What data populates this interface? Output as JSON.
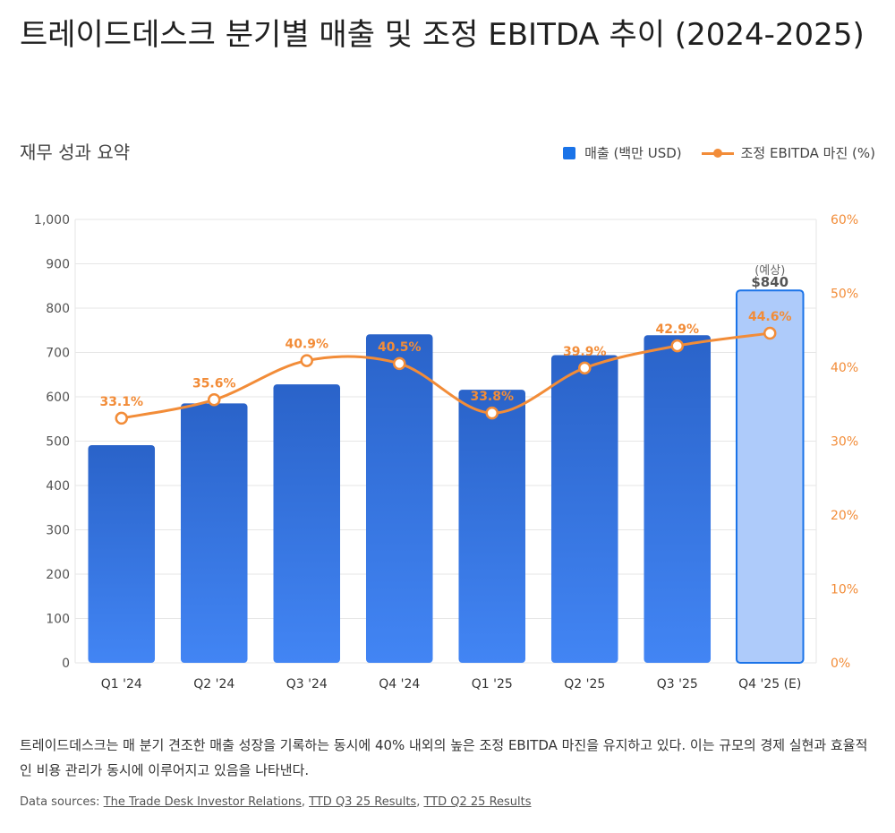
{
  "header": {
    "title": "트레이드데스크 분기별 매출 및 조정 EBITDA 추이 (2024-2025)",
    "subtitle": "재무 성과 요약"
  },
  "legend": {
    "revenue_label": "매출 (백만 USD)",
    "margin_label": "조정 EBITDA 마진 (%)"
  },
  "colors": {
    "bar_top": "#2a63c9",
    "bar_bottom": "#4285f4",
    "estimate_fill": "#aecbfa",
    "estimate_stroke": "#1a73e8",
    "line": "#f28c38",
    "grid": "#e6e6e6"
  },
  "chart_data": {
    "type": "bar",
    "categories": [
      "Q1 '24",
      "Q2 '24",
      "Q3 '24",
      "Q4 '24",
      "Q1 '25",
      "Q2 '25",
      "Q3 '25",
      "Q4 '25 (E)"
    ],
    "series": [
      {
        "name": "매출 (백만 USD)",
        "type": "bar",
        "axis": "left",
        "values": [
          491,
          585,
          628,
          741,
          616,
          694,
          739,
          840
        ]
      },
      {
        "name": "조정 EBITDA 마진 (%)",
        "type": "line",
        "axis": "right",
        "values": [
          33.1,
          35.6,
          40.9,
          40.5,
          33.8,
          39.9,
          42.9,
          44.6
        ],
        "labels": [
          "33.1%",
          "35.6%",
          "40.9%",
          "40.5%",
          "33.8%",
          "39.9%",
          "42.9%",
          "44.6%"
        ]
      }
    ],
    "left_axis": {
      "min": 0,
      "max": 1000,
      "step": 100,
      "tick_labels": [
        "0",
        "100",
        "200",
        "300",
        "400",
        "500",
        "600",
        "700",
        "800",
        "900",
        "1,000"
      ]
    },
    "right_axis": {
      "min": 0,
      "max": 60,
      "step": 10,
      "tick_labels": [
        "0%",
        "10%",
        "20%",
        "30%",
        "40%",
        "50%",
        "60%"
      ]
    },
    "estimate_index": 7,
    "estimate_annotation": {
      "note": "(예상)",
      "value": "$840"
    },
    "grid": true,
    "legend_position": "top-right"
  },
  "footer": {
    "description": "트레이드데스크는 매 분기 견조한 매출 성장을 기록하는 동시에 40% 내외의 높은 조정 EBITDA 마진을 유지하고 있다. 이는 규모의 경제 실현과 효율적인 비용 관리가 동시에 이루어지고 있음을 나타낸다.",
    "sources_label": "Data sources:",
    "sources": [
      "The Trade Desk Investor Relations",
      "TTD Q3 25 Results",
      "TTD Q2 25 Results"
    ]
  }
}
